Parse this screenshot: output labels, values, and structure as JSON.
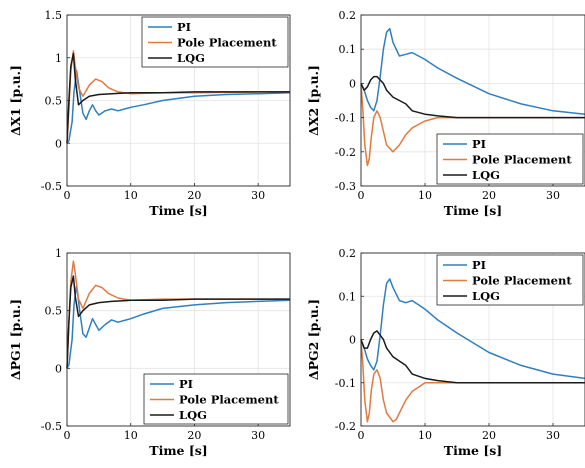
{
  "colors": {
    "PI": "#2f7fc1",
    "Pole Placement": "#e07a42",
    "LQG": "#1a1a1a"
  },
  "chart_data": [
    {
      "type": "line",
      "xlabel": "Time [s]",
      "ylabel": "ΔX1 [p.u.]",
      "xlim": [
        0,
        35
      ],
      "ylim": [
        -0.5,
        1.5
      ],
      "xticks": [
        0,
        10,
        20,
        30
      ],
      "yticks": [
        -0.5,
        0,
        0.5,
        1,
        1.5
      ],
      "grid": true,
      "legend_position": "top-right",
      "series": [
        {
          "name": "PI",
          "x": [
            0,
            0.3,
            0.8,
            1.1,
            1.5,
            2,
            2.5,
            3,
            3.5,
            4,
            4.5,
            5,
            6,
            7,
            8,
            10,
            12,
            15,
            20,
            25,
            30,
            35
          ],
          "y": [
            0,
            0.03,
            0.25,
            0.6,
            0.85,
            0.6,
            0.35,
            0.28,
            0.38,
            0.45,
            0.38,
            0.33,
            0.38,
            0.4,
            0.38,
            0.42,
            0.45,
            0.5,
            0.55,
            0.57,
            0.58,
            0.59
          ]
        },
        {
          "name": "Pole Placement",
          "x": [
            0,
            0.3,
            0.6,
            1,
            1.3,
            1.8,
            2.5,
            3.5,
            4.5,
            5.5,
            6.5,
            8,
            10,
            15,
            20,
            30,
            35
          ],
          "y": [
            0,
            0.4,
            0.85,
            1.08,
            0.9,
            0.65,
            0.55,
            0.68,
            0.75,
            0.72,
            0.65,
            0.6,
            0.58,
            0.59,
            0.59,
            0.6,
            0.6
          ]
        },
        {
          "name": "LQG",
          "x": [
            0,
            0.3,
            0.6,
            1,
            1.3,
            1.8,
            2.5,
            3.5,
            5,
            7,
            10,
            15,
            20,
            25,
            30,
            35
          ],
          "y": [
            0,
            0.5,
            0.9,
            1.05,
            0.75,
            0.45,
            0.5,
            0.55,
            0.57,
            0.58,
            0.59,
            0.59,
            0.6,
            0.6,
            0.6,
            0.6
          ]
        }
      ]
    },
    {
      "type": "line",
      "xlabel": "Time [s]",
      "ylabel": "ΔX2 [p.u.]",
      "xlim": [
        0,
        35
      ],
      "ylim": [
        -0.3,
        0.2
      ],
      "xticks": [
        0,
        10,
        20,
        30
      ],
      "yticks": [
        -0.3,
        -0.2,
        -0.1,
        0,
        0.1,
        0.2
      ],
      "grid": true,
      "legend_position": "bottom-right",
      "series": [
        {
          "name": "PI",
          "x": [
            0,
            0.5,
            1,
            1.5,
            2,
            2.5,
            3,
            3.5,
            4,
            4.5,
            5,
            6,
            7,
            8,
            9,
            10,
            12,
            15,
            20,
            25,
            30,
            35
          ],
          "y": [
            0,
            -0.02,
            -0.05,
            -0.07,
            -0.08,
            -0.05,
            0.02,
            0.1,
            0.15,
            0.16,
            0.12,
            0.08,
            0.085,
            0.09,
            0.08,
            0.07,
            0.045,
            0.015,
            -0.03,
            -0.06,
            -0.08,
            -0.09
          ]
        },
        {
          "name": "Pole Placement",
          "x": [
            0,
            0.3,
            0.6,
            1,
            1.3,
            1.6,
            2,
            2.5,
            3,
            3.5,
            4,
            5,
            5.5,
            6,
            7,
            8,
            9,
            10,
            12,
            15,
            20,
            25,
            30,
            35
          ],
          "y": [
            0,
            -0.08,
            -0.18,
            -0.24,
            -0.22,
            -0.16,
            -0.1,
            -0.08,
            -0.1,
            -0.14,
            -0.18,
            -0.2,
            -0.19,
            -0.18,
            -0.15,
            -0.13,
            -0.12,
            -0.11,
            -0.1,
            -0.1,
            -0.1,
            -0.1,
            -0.1,
            -0.1
          ]
        },
        {
          "name": "LQG",
          "x": [
            0,
            0.5,
            1,
            1.5,
            2,
            2.5,
            3,
            3.5,
            4,
            5,
            6,
            7,
            8,
            10,
            12,
            15,
            20,
            25,
            30,
            35
          ],
          "y": [
            0,
            -0.02,
            -0.01,
            0.01,
            0.02,
            0.02,
            0.01,
            0,
            -0.02,
            -0.04,
            -0.05,
            -0.06,
            -0.08,
            -0.09,
            -0.095,
            -0.1,
            -0.1,
            -0.1,
            -0.1,
            -0.1
          ]
        }
      ]
    },
    {
      "type": "line",
      "xlabel": "Time [s]",
      "ylabel": "ΔPG1 [p.u.]",
      "xlim": [
        0,
        35
      ],
      "ylim": [
        -0.5,
        1
      ],
      "xticks": [
        0,
        10,
        20,
        30
      ],
      "yticks": [
        -0.5,
        0,
        0.5,
        1
      ],
      "grid": true,
      "legend_position": "bottom-right",
      "series": [
        {
          "name": "PI",
          "x": [
            0,
            0.3,
            0.8,
            1.1,
            1.5,
            2,
            2.5,
            3,
            3.5,
            4,
            4.5,
            5,
            6,
            7,
            8,
            10,
            12,
            15,
            20,
            25,
            30,
            35
          ],
          "y": [
            0,
            0.03,
            0.25,
            0.55,
            0.72,
            0.5,
            0.3,
            0.27,
            0.35,
            0.43,
            0.38,
            0.33,
            0.38,
            0.42,
            0.4,
            0.43,
            0.47,
            0.52,
            0.55,
            0.57,
            0.58,
            0.59
          ]
        },
        {
          "name": "Pole Placement",
          "x": [
            0,
            0.3,
            0.6,
            1,
            1.3,
            1.8,
            2.5,
            3.5,
            4.5,
            5.5,
            6.5,
            8,
            10,
            15,
            20,
            30,
            35
          ],
          "y": [
            0,
            0.4,
            0.75,
            0.93,
            0.82,
            0.6,
            0.52,
            0.65,
            0.72,
            0.7,
            0.65,
            0.61,
            0.59,
            0.6,
            0.6,
            0.6,
            0.6
          ]
        },
        {
          "name": "LQG",
          "x": [
            0,
            0.3,
            0.6,
            1,
            1.3,
            1.8,
            2.5,
            3.5,
            5,
            7,
            10,
            15,
            20,
            25,
            30,
            35
          ],
          "y": [
            0,
            0.4,
            0.7,
            0.8,
            0.62,
            0.45,
            0.5,
            0.55,
            0.57,
            0.58,
            0.59,
            0.59,
            0.6,
            0.6,
            0.6,
            0.6
          ]
        }
      ]
    },
    {
      "type": "line",
      "xlabel": "Time [s]",
      "ylabel": "ΔPG2 [p.u.]",
      "xlim": [
        0,
        35
      ],
      "ylim": [
        -0.2,
        0.2
      ],
      "xticks": [
        0,
        10,
        20,
        30
      ],
      "yticks": [
        -0.2,
        -0.1,
        0,
        0.1,
        0.2
      ],
      "grid": true,
      "legend_position": "top-right",
      "series": [
        {
          "name": "PI",
          "x": [
            0,
            0.5,
            1,
            1.5,
            2,
            2.5,
            3,
            3.5,
            4,
            4.5,
            5,
            6,
            7,
            8,
            9,
            10,
            12,
            15,
            20,
            25,
            30,
            35
          ],
          "y": [
            0,
            -0.02,
            -0.045,
            -0.06,
            -0.07,
            -0.05,
            0.01,
            0.08,
            0.13,
            0.14,
            0.12,
            0.09,
            0.085,
            0.09,
            0.08,
            0.07,
            0.045,
            0.015,
            -0.03,
            -0.06,
            -0.08,
            -0.09
          ]
        },
        {
          "name": "Pole Placement",
          "x": [
            0,
            0.3,
            0.6,
            1,
            1.3,
            1.6,
            2,
            2.5,
            3,
            3.5,
            4,
            5,
            5.5,
            6,
            7,
            8,
            9,
            10,
            12,
            15,
            20,
            25,
            30,
            35
          ],
          "y": [
            0,
            -0.06,
            -0.14,
            -0.19,
            -0.17,
            -0.12,
            -0.08,
            -0.07,
            -0.09,
            -0.14,
            -0.17,
            -0.19,
            -0.185,
            -0.17,
            -0.14,
            -0.12,
            -0.11,
            -0.1,
            -0.1,
            -0.1,
            -0.1,
            -0.1,
            -0.1,
            -0.1
          ]
        },
        {
          "name": "LQG",
          "x": [
            0,
            0.5,
            1,
            1.5,
            2,
            2.5,
            3,
            3.5,
            4,
            5,
            6,
            7,
            8,
            10,
            12,
            15,
            20,
            25,
            30,
            35
          ],
          "y": [
            0,
            -0.02,
            -0.02,
            0,
            0.015,
            0.02,
            0.01,
            0,
            -0.02,
            -0.04,
            -0.05,
            -0.06,
            -0.08,
            -0.09,
            -0.095,
            -0.1,
            -0.1,
            -0.1,
            -0.1,
            -0.1
          ]
        }
      ]
    }
  ]
}
